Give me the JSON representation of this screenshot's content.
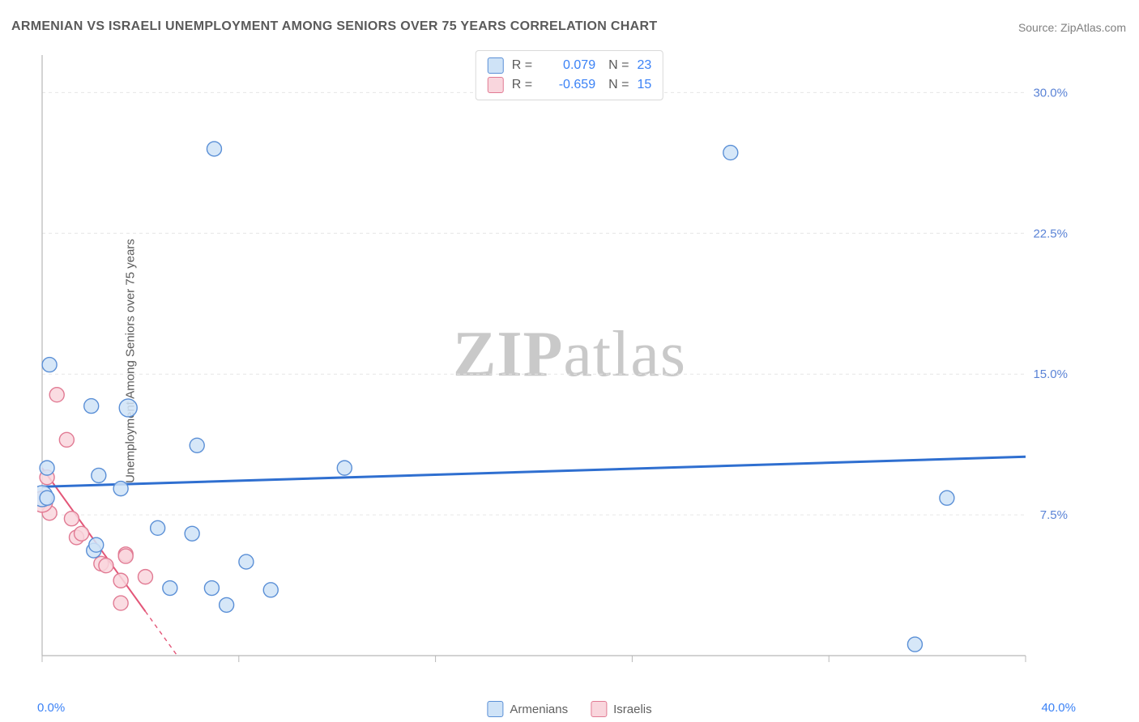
{
  "title": "ARMENIAN VS ISRAELI UNEMPLOYMENT AMONG SENIORS OVER 75 YEARS CORRELATION CHART",
  "source_label": "Source: ZipAtlas.com",
  "y_axis_label": "Unemployment Among Seniors over 75 years",
  "watermark_a": "ZIP",
  "watermark_b": "atlas",
  "x_axis": {
    "min_label": "0.0%",
    "max_label": "40.0%",
    "min": 0,
    "max": 40,
    "ticks": [
      0,
      8,
      16,
      24,
      32,
      40
    ]
  },
  "y_axis": {
    "min": 0,
    "max": 32,
    "ticks": [
      7.5,
      15.0,
      22.5,
      30.0
    ],
    "tick_labels": [
      "7.5%",
      "15.0%",
      "22.5%",
      "30.0%"
    ]
  },
  "chart": {
    "type": "scatter",
    "background_color": "#ffffff",
    "grid_color": "#e6e6e6",
    "axis_color": "#b8b8b8",
    "text_color": "#5a5a5a",
    "tick_label_color": "#5a83d6",
    "font_family": "Arial",
    "title_fontsize": 16,
    "label_fontsize": 15,
    "point_radius": 9,
    "point_radius_large": 13,
    "series": [
      {
        "key": "armenians",
        "label": "Armenians",
        "fill": "#cfe3f7",
        "stroke": "#5a8fd6",
        "r_value": "0.079",
        "n_value": "23",
        "trend": {
          "y_intercept": 9.0,
          "slope": 0.04,
          "color": "#2f6fd0",
          "width": 3
        },
        "points": [
          {
            "x": 0.3,
            "y": 15.5,
            "r": 9
          },
          {
            "x": 0.2,
            "y": 10.0,
            "r": 9
          },
          {
            "x": 0.0,
            "y": 8.5,
            "r": 13
          },
          {
            "x": 0.2,
            "y": 8.4,
            "r": 9
          },
          {
            "x": 2.0,
            "y": 13.3,
            "r": 9
          },
          {
            "x": 3.5,
            "y": 13.2,
            "r": 11
          },
          {
            "x": 2.3,
            "y": 9.6,
            "r": 9
          },
          {
            "x": 3.2,
            "y": 8.9,
            "r": 9
          },
          {
            "x": 2.1,
            "y": 5.6,
            "r": 9
          },
          {
            "x": 2.2,
            "y": 5.9,
            "r": 9
          },
          {
            "x": 4.7,
            "y": 6.8,
            "r": 9
          },
          {
            "x": 6.9,
            "y": 3.6,
            "r": 9
          },
          {
            "x": 5.2,
            "y": 3.6,
            "r": 9
          },
          {
            "x": 6.1,
            "y": 6.5,
            "r": 9
          },
          {
            "x": 6.3,
            "y": 11.2,
            "r": 9
          },
          {
            "x": 7.0,
            "y": 27.0,
            "r": 9
          },
          {
            "x": 8.3,
            "y": 5.0,
            "r": 9
          },
          {
            "x": 9.3,
            "y": 3.5,
            "r": 9
          },
          {
            "x": 7.5,
            "y": 2.7,
            "r": 9
          },
          {
            "x": 12.3,
            "y": 10.0,
            "r": 9
          },
          {
            "x": 28.0,
            "y": 26.8,
            "r": 9
          },
          {
            "x": 36.8,
            "y": 8.4,
            "r": 9
          },
          {
            "x": 35.5,
            "y": 0.6,
            "r": 9
          }
        ]
      },
      {
        "key": "israelis",
        "label": "Israelis",
        "fill": "#f9d6dd",
        "stroke": "#e17a93",
        "r_value": "-0.659",
        "n_value": "15",
        "trend": {
          "y_intercept": 10.0,
          "slope": -1.82,
          "color": "#e35678",
          "width": 2,
          "dash_after_x": 4.2
        },
        "points": [
          {
            "x": 0.3,
            "y": 7.6,
            "r": 9
          },
          {
            "x": 0.0,
            "y": 8.2,
            "r": 13
          },
          {
            "x": 0.2,
            "y": 9.5,
            "r": 9
          },
          {
            "x": 0.6,
            "y": 13.9,
            "r": 9
          },
          {
            "x": 1.0,
            "y": 11.5,
            "r": 9
          },
          {
            "x": 1.2,
            "y": 7.3,
            "r": 9
          },
          {
            "x": 1.4,
            "y": 6.3,
            "r": 9
          },
          {
            "x": 1.6,
            "y": 6.5,
            "r": 9
          },
          {
            "x": 2.4,
            "y": 4.9,
            "r": 9
          },
          {
            "x": 2.6,
            "y": 4.8,
            "r": 9
          },
          {
            "x": 3.2,
            "y": 4.0,
            "r": 9
          },
          {
            "x": 3.2,
            "y": 2.8,
            "r": 9
          },
          {
            "x": 3.4,
            "y": 5.4,
            "r": 9
          },
          {
            "x": 3.4,
            "y": 5.3,
            "r": 9
          },
          {
            "x": 4.2,
            "y": 4.2,
            "r": 9
          }
        ]
      }
    ]
  },
  "legend_top_prefix_r": "R  =",
  "legend_top_prefix_n": "N  ="
}
